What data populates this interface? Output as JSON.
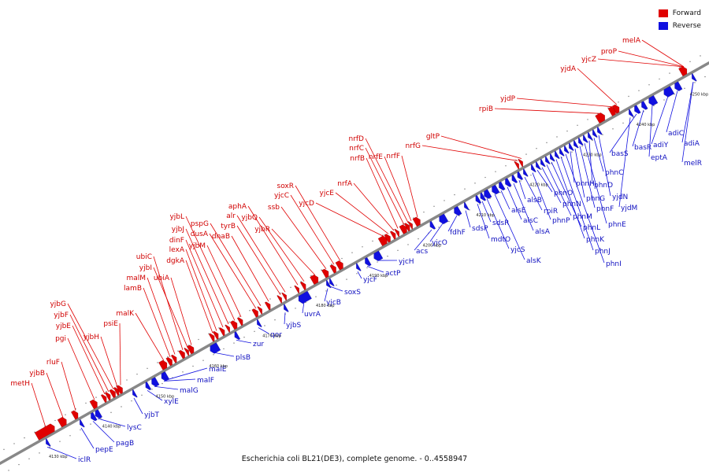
{
  "legend": {
    "forward": {
      "label": "Forward",
      "color": "#e00000"
    },
    "reverse": {
      "label": "Reverse",
      "color": "#1010e0"
    }
  },
  "caption": "Escherichia coli BL21(DE3), complete genome. - 0..4558947",
  "scale_labels": [
    "4130 kbp",
    "4140 kbp",
    "4150 kbp",
    "4160 kbp",
    "4170 kbp",
    "4180 kbp",
    "4190 kbp",
    "4200 kbp",
    "4210 kbp",
    "4220 kbp",
    "4230 kbp",
    "4240 kbp",
    "4250 kbp"
  ],
  "forward_genes": [
    "metH",
    "yjbB",
    "rluF",
    "pgi",
    "yjbE",
    "yjbF",
    "yjbG",
    "yjbH",
    "psiE",
    "malK",
    "lamB",
    "malM",
    "ubiC",
    "yjbI",
    "ubiA",
    "dgkA",
    "lexA",
    "dinF",
    "yjbJ",
    "yjbL",
    "yjbM",
    "dusA",
    "pspG",
    "dnaB",
    "tyrB",
    "alr",
    "aphA",
    "yjbQ",
    "yjbR",
    "ssb",
    "yjcC",
    "soxR",
    "yjcD",
    "yjcE",
    "nrfA",
    "nrfB",
    "nrfC",
    "nrfD",
    "nrfE",
    "nrfF",
    "nrfG",
    "gltP",
    "rpiB",
    "yjdP",
    "yjdA",
    "yjcZ",
    "proP",
    "melA"
  ],
  "reverse_genes": [
    "iclR",
    "pepE",
    "pagB",
    "lysC",
    "yjbT",
    "xylE",
    "malG",
    "malF",
    "malE",
    "plsB",
    "zur",
    "qor",
    "yjbS",
    "uvrA",
    "yjcB",
    "soxS",
    "yjcF",
    "actP",
    "yjcH",
    "acs",
    "yjcO",
    "fdhF",
    "sdsP",
    "mdtO",
    "sdsR",
    "yjcS",
    "alsK",
    "alsE",
    "alsC",
    "alsA",
    "alsB",
    "rpiR",
    "phnP",
    "phnO",
    "phnN",
    "phnM",
    "phnL",
    "phnK",
    "phnJ",
    "phnI",
    "phnH",
    "phnG",
    "phnF",
    "phnE",
    "phnD",
    "phnC",
    "yjdN",
    "yjdM",
    "basS",
    "basR",
    "eptA",
    "adiY",
    "adiC",
    "adiA",
    "melR"
  ]
}
